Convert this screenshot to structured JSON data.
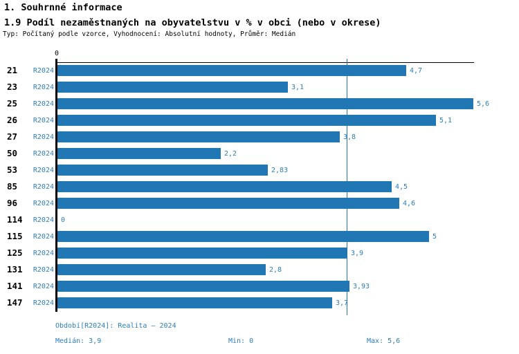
{
  "header": {
    "title1": "1. Souhrnné informace",
    "title2": "1.9 Podíl nezaměstnaných na obyvatelstvu v % v obci (nebo v okrese)",
    "subtitle": "Typ: Počítaný podle vzorce, Vyhodnocení: Absolutní hodnoty, Průměr: Medián"
  },
  "chart_data": {
    "type": "bar",
    "orientation": "horizontal",
    "title": "1.9 Podíl nezaměstnaných na obyvatelstvu v % v obci (nebo v okrese)",
    "categories": [
      "21",
      "23",
      "25",
      "26",
      "27",
      "50",
      "53",
      "85",
      "96",
      "114",
      "115",
      "125",
      "131",
      "141",
      "147"
    ],
    "series_label": "R2024",
    "values": [
      4.7,
      3.1,
      5.6,
      5.1,
      3.8,
      2.2,
      2.83,
      4.5,
      4.6,
      0,
      5,
      3.9,
      2.8,
      3.93,
      3.7
    ],
    "value_labels": [
      "4,7",
      "3,1",
      "5,6",
      "5,1",
      "3,8",
      "2,2",
      "2,83",
      "4,5",
      "4,6",
      "0",
      "5",
      "3,9",
      "2,8",
      "3,93",
      "3,7"
    ],
    "xlim": [
      0,
      5.6
    ],
    "zero_tick_label": "0",
    "median_value": 3.9,
    "legend_position": "none",
    "grid": false,
    "bar_color": "#2077b4",
    "median_line_color": "#2077b4",
    "label_color": "#2b7db8"
  },
  "footer": {
    "period": "Období[R2024]: Realita – 2024",
    "median": "Medián: 3,9",
    "min": "Min: 0",
    "max": "Max: 5,6"
  }
}
